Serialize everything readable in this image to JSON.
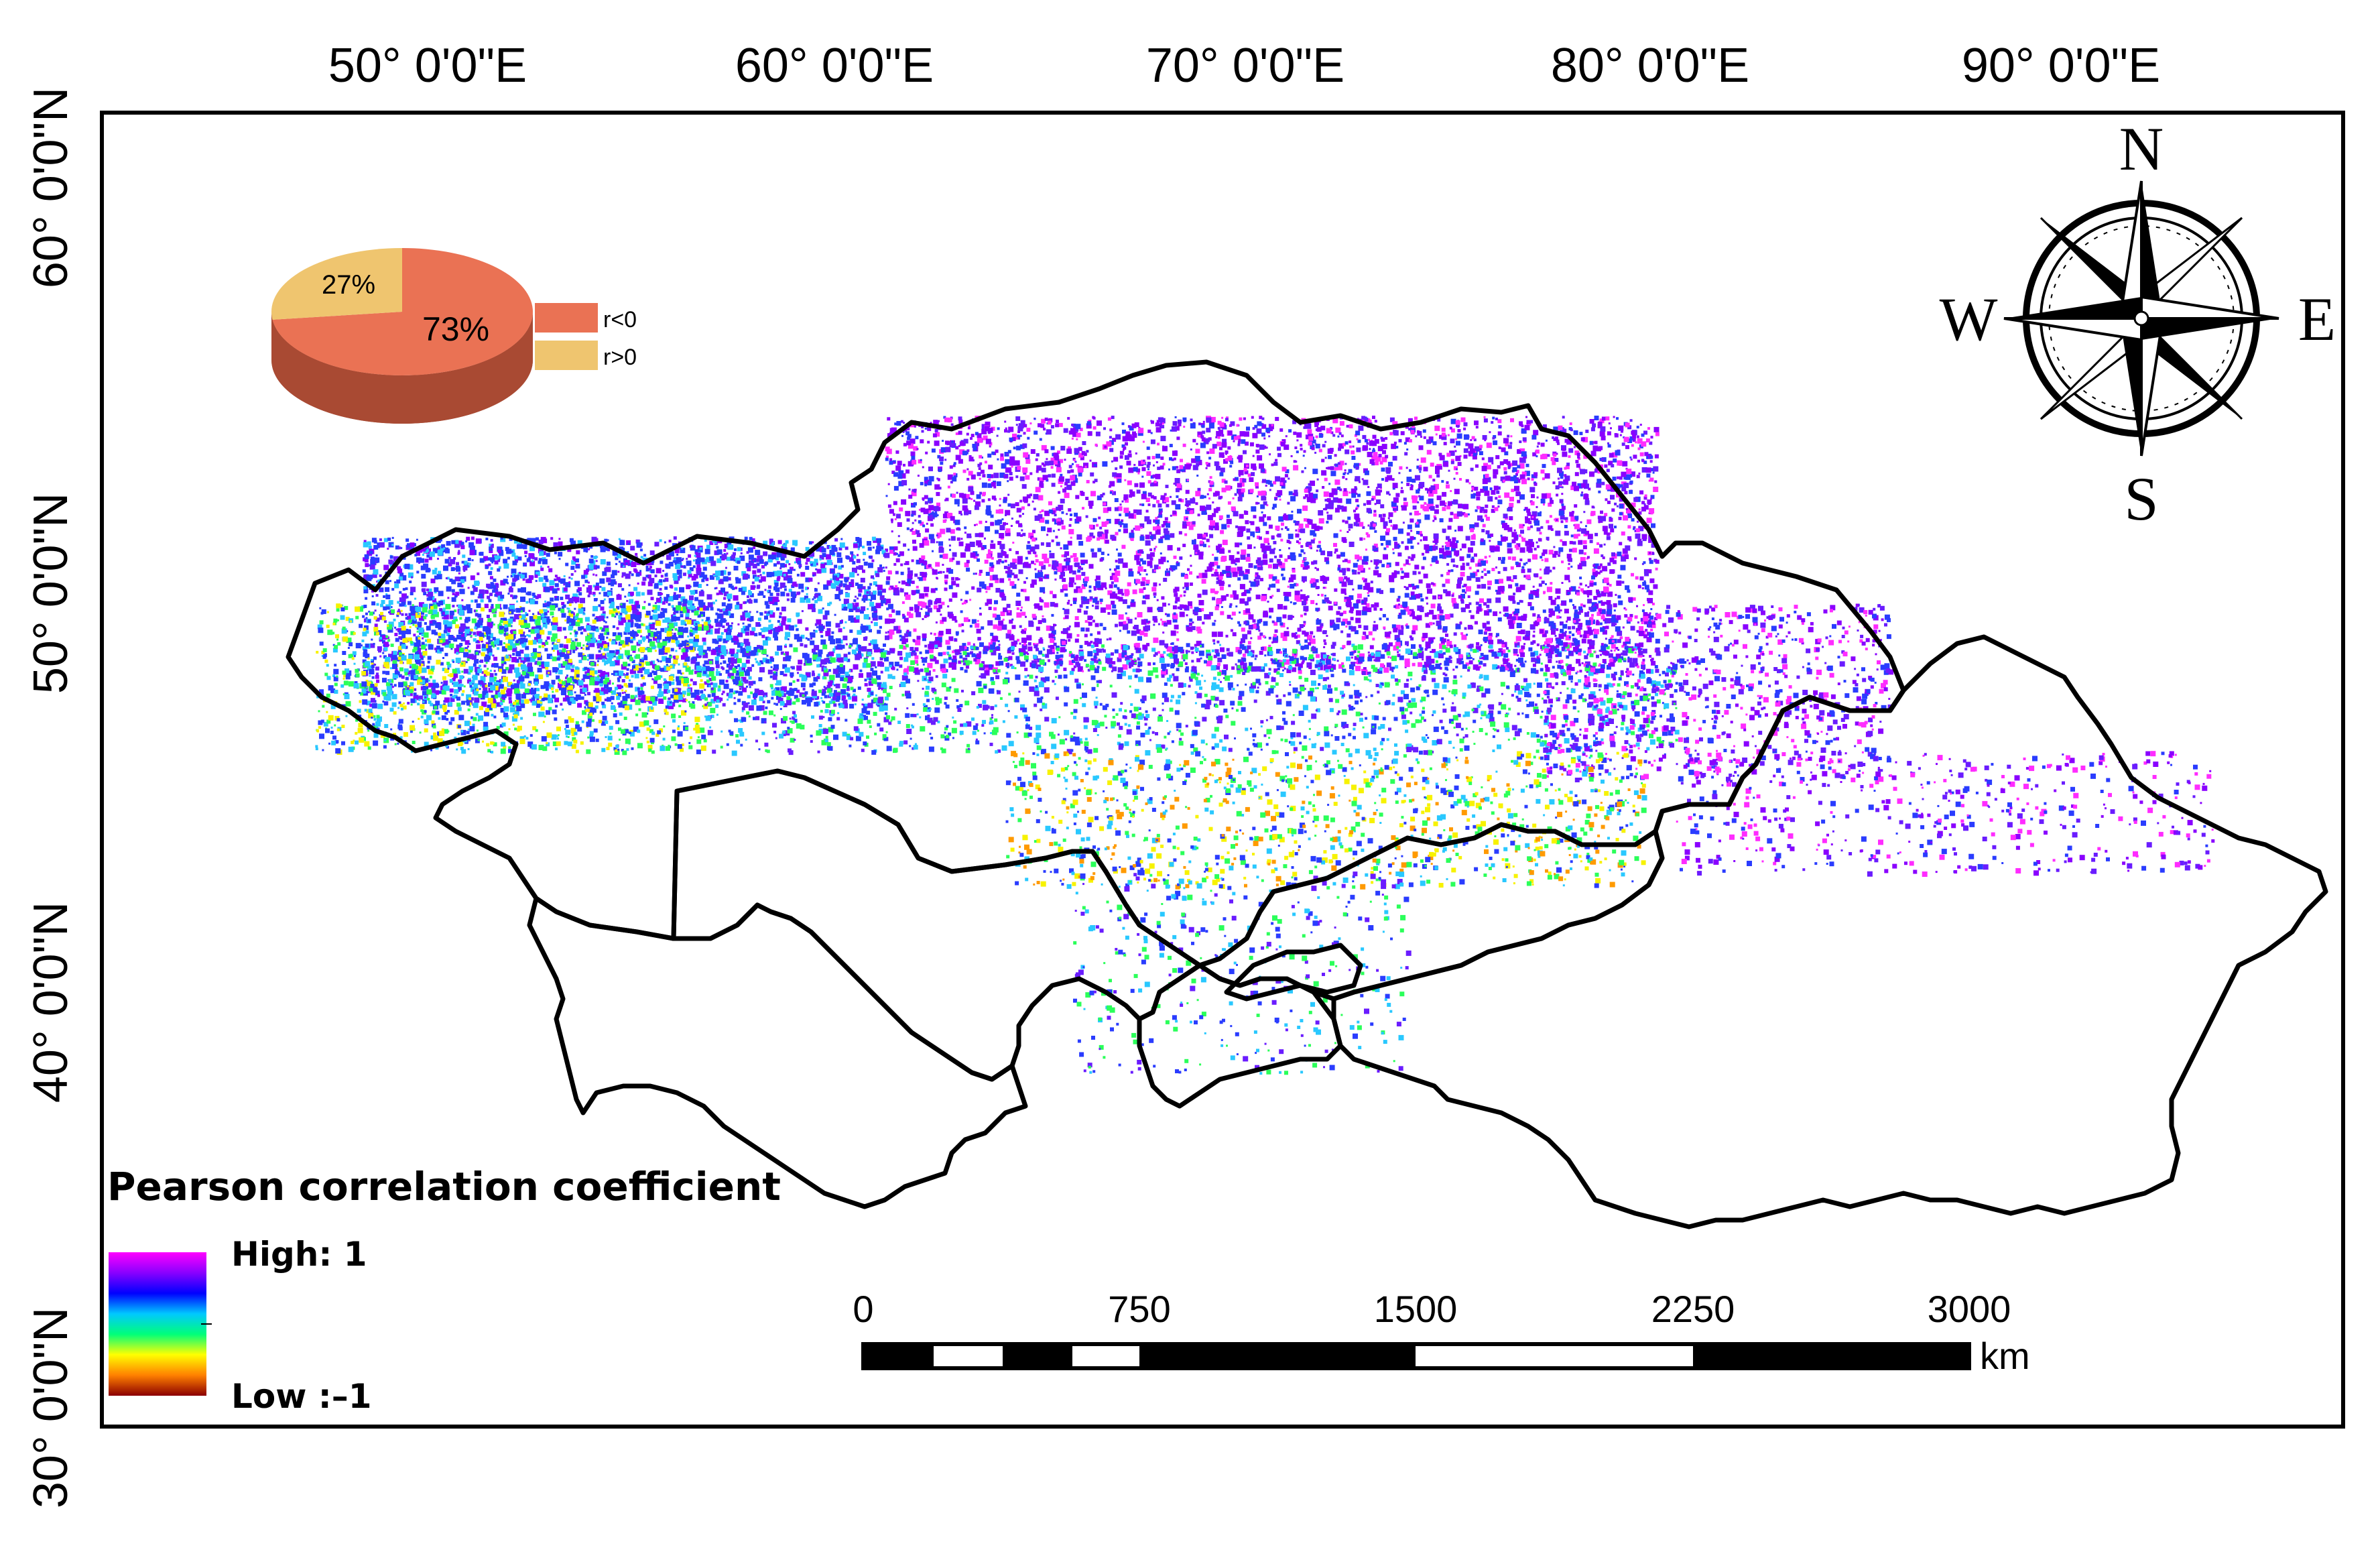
{
  "top_axis": {
    "labels": [
      "50° 0'0\"E",
      "60° 0'0\"E",
      "70° 0'0\"E",
      "80° 0'0\"E",
      "90° 0'0\"E"
    ]
  },
  "left_axis": {
    "labels": [
      "60° 0'0\"N",
      "50° 0'0\"N",
      "40° 0'0\"N",
      "30° 0'0\"N"
    ]
  },
  "compass": {
    "north": "N",
    "south": "S",
    "east": "E",
    "west": "W"
  },
  "pie": {
    "slices": [
      {
        "label": "73%",
        "value": 73,
        "legend": "r<0",
        "color": "#ea7254",
        "side_color": "#a94a33"
      },
      {
        "label": "27%",
        "value": 27,
        "legend": "r>0",
        "color": "#efc56f",
        "side_color": "#b48c40"
      }
    ]
  },
  "legend": {
    "title": "Pearson correlation coefficient",
    "high_label": "High: 1",
    "low_label": "Low :–1",
    "ramp_colors": [
      "#ff00ff",
      "#8a00ff",
      "#0000ff",
      "#00c8ff",
      "#00ff7a",
      "#ffff00",
      "#ff8000",
      "#8b0000"
    ]
  },
  "scale_bar": {
    "ticks": [
      "0",
      "750",
      "1500",
      "2250",
      "3000"
    ],
    "unit": "km"
  },
  "colors": {
    "purple": "#8a00ff",
    "violet": "#6a1cff",
    "blue": "#2a3cff",
    "cyan": "#29c8ff",
    "green": "#2bff5a",
    "yellow": "#f7f200",
    "orange": "#ff9a00",
    "magenta": "#ff2cff"
  }
}
